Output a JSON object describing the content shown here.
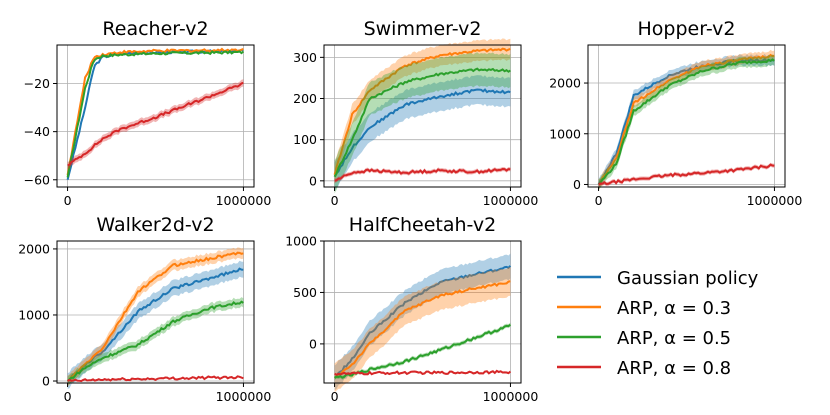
{
  "chart_data": [
    {
      "type": "line",
      "title": "Reacher-v2",
      "x": [
        0,
        100000,
        150000,
        200000,
        300000,
        500000,
        1000000
      ],
      "xlim": [
        -60000,
        1060000
      ],
      "ylim": [
        -63,
        -4
      ],
      "yticks": [
        -60,
        -40,
        -20
      ],
      "ytick_labels": [
        "−60",
        "−40",
        "−20"
      ],
      "xticks": [
        0,
        1000000
      ],
      "xtick_labels": [
        "0",
        "1000000"
      ],
      "series": [
        {
          "name": "Gaussian policy",
          "values": [
            -60,
            -30,
            -13,
            -9,
            -7.5,
            -7,
            -6.5
          ],
          "band": 0.4
        },
        {
          "name": "ARP, α = 0.3",
          "values": [
            -58,
            -18,
            -9,
            -8,
            -7,
            -6.5,
            -6
          ],
          "band": 0.4
        },
        {
          "name": "ARP, α = 0.5",
          "values": [
            -59,
            -22,
            -10,
            -8.5,
            -8,
            -7.5,
            -7
          ],
          "band": 0.4
        },
        {
          "name": "ARP, α = 0.8",
          "values": [
            -54,
            -49,
            -46,
            -43,
            -39,
            -34,
            -20
          ],
          "band": 1.5
        }
      ]
    },
    {
      "type": "line",
      "title": "Swimmer-v2",
      "x": [
        0,
        100000,
        200000,
        400000,
        600000,
        800000,
        1000000
      ],
      "xlim": [
        -60000,
        1060000
      ],
      "ylim": [
        -15,
        330
      ],
      "yticks": [
        0,
        100,
        200,
        300
      ],
      "ytick_labels": [
        "0",
        "100",
        "200",
        "300"
      ],
      "xticks": [
        0,
        1000000
      ],
      "xtick_labels": [
        "0",
        "1000000"
      ],
      "series": [
        {
          "name": "Gaussian policy",
          "values": [
            10,
            80,
            130,
            185,
            205,
            220,
            215
          ],
          "band": 35
        },
        {
          "name": "ARP, α = 0.3",
          "values": [
            15,
            160,
            220,
            280,
            305,
            315,
            320
          ],
          "band": 25
        },
        {
          "name": "ARP, α = 0.5",
          "values": [
            10,
            100,
            200,
            240,
            260,
            270,
            268
          ],
          "band": 40
        },
        {
          "name": "ARP, α = 0.8",
          "values": [
            0,
            20,
            25,
            20,
            25,
            22,
            28
          ],
          "band": 5
        }
      ]
    },
    {
      "type": "line",
      "title": "Hopper-v2",
      "x": [
        0,
        100000,
        200000,
        400000,
        600000,
        800000,
        1000000
      ],
      "xlim": [
        -60000,
        1060000
      ],
      "ylim": [
        -50,
        2750
      ],
      "yticks": [
        0,
        1000,
        2000
      ],
      "ytick_labels": [
        "0",
        "1000",
        "2000"
      ],
      "xticks": [
        0,
        1000000
      ],
      "xtick_labels": [
        "0",
        "1000000"
      ],
      "series": [
        {
          "name": "Gaussian policy",
          "values": [
            0,
            600,
            1750,
            2150,
            2350,
            2450,
            2450
          ],
          "band": 100
        },
        {
          "name": "ARP, α = 0.3",
          "values": [
            0,
            500,
            1600,
            2050,
            2350,
            2450,
            2550
          ],
          "band": 100
        },
        {
          "name": "ARP, α = 0.5",
          "values": [
            0,
            400,
            1450,
            1950,
            2250,
            2400,
            2450
          ],
          "band": 100
        },
        {
          "name": "ARP, α = 0.8",
          "values": [
            0,
            50,
            100,
            180,
            230,
            290,
            380
          ],
          "band": 40
        }
      ]
    },
    {
      "type": "line",
      "title": "Walker2d-v2",
      "x": [
        0,
        100000,
        200000,
        400000,
        600000,
        800000,
        1000000
      ],
      "xlim": [
        -60000,
        1060000
      ],
      "ylim": [
        -30,
        2120
      ],
      "yticks": [
        0,
        1000,
        2000
      ],
      "ytick_labels": [
        "0",
        "1000",
        "2000"
      ],
      "xticks": [
        0,
        1000000
      ],
      "xtick_labels": [
        "0",
        "1000000"
      ],
      "series": [
        {
          "name": "Gaussian policy",
          "values": [
            0,
            250,
            450,
            1050,
            1400,
            1550,
            1700
          ],
          "band": 120
        },
        {
          "name": "ARP, α = 0.3",
          "values": [
            0,
            250,
            500,
            1350,
            1750,
            1850,
            1950
          ],
          "band": 80
        },
        {
          "name": "ARP, α = 0.5",
          "values": [
            0,
            200,
            350,
            550,
            900,
            1100,
            1200
          ],
          "band": 70
        },
        {
          "name": "ARP, α = 0.8",
          "values": [
            0,
            10,
            20,
            30,
            40,
            50,
            60
          ],
          "band": 10
        }
      ]
    },
    {
      "type": "line",
      "title": "HalfCheetah-v2",
      "x": [
        0,
        100000,
        200000,
        400000,
        600000,
        800000,
        1000000
      ],
      "xlim": [
        -60000,
        1060000
      ],
      "ylim": [
        -380,
        1000
      ],
      "yticks": [
        0,
        500,
        1000
      ],
      "ytick_labels": [
        "0",
        "500",
        "1000"
      ],
      "xticks": [
        0,
        1000000
      ],
      "xtick_labels": [
        "0",
        "1000000"
      ],
      "series": [
        {
          "name": "Gaussian policy",
          "values": [
            -330,
            -150,
            100,
            400,
            600,
            680,
            750
          ],
          "band": 120
        },
        {
          "name": "ARP, α = 0.3",
          "values": [
            -330,
            -200,
            0,
            320,
            470,
            540,
            600
          ],
          "band": 140
        },
        {
          "name": "ARP, α = 0.5",
          "values": [
            -330,
            -300,
            -250,
            -170,
            -60,
            60,
            180
          ],
          "band": 20
        },
        {
          "name": "ARP, α = 0.8",
          "values": [
            -290,
            -290,
            -285,
            -280,
            -280,
            -275,
            -275
          ],
          "band": 10
        }
      ]
    }
  ],
  "legend": {
    "items": [
      {
        "label": "Gaussian policy",
        "color": "#1f77b4"
      },
      {
        "label": "ARP, α = 0.3",
        "color": "#ff7f0e"
      },
      {
        "label": "ARP, α = 0.5",
        "color": "#2ca02c"
      },
      {
        "label": "ARP, α = 0.8",
        "color": "#d62728"
      }
    ]
  },
  "colors": [
    "#1f77b4",
    "#ff7f0e",
    "#2ca02c",
    "#d62728"
  ]
}
